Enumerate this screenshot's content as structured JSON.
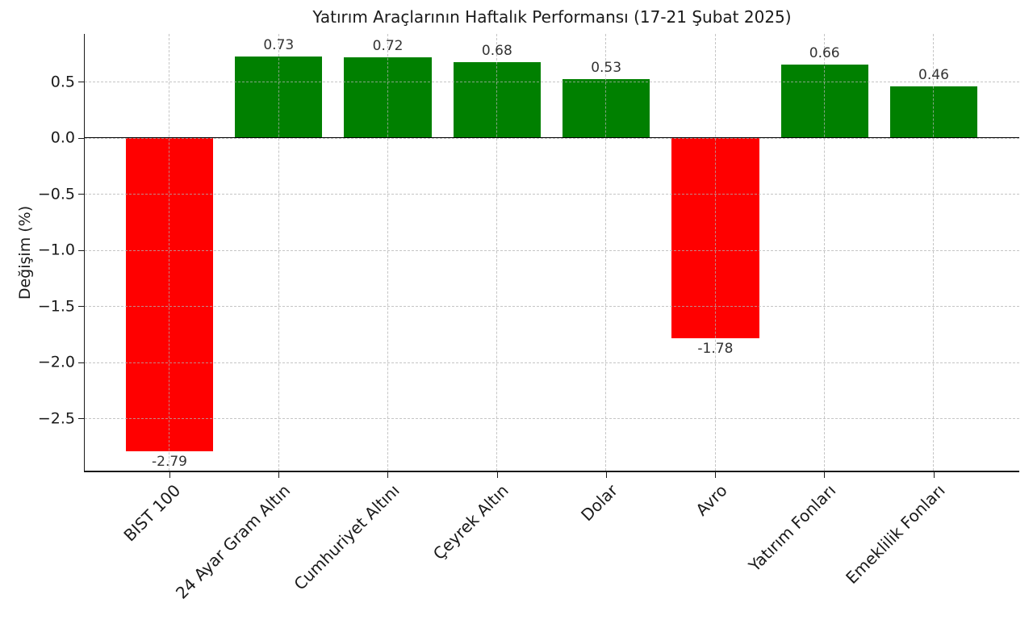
{
  "chart_data": {
    "type": "bar",
    "title": "Yatırım Araçlarının Haftalık Performansı (17-21 Şubat 2025)",
    "xlabel": "",
    "ylabel": "Değişim (%)",
    "categories": [
      "BIST 100",
      "24 Ayar Gram Altın",
      "Cumhuriyet Altını",
      "Çeyrek Altın",
      "Dolar",
      "Avro",
      "Yatırım Fonları",
      "Emeklilik Fonları"
    ],
    "values": [
      -2.79,
      0.73,
      0.72,
      0.68,
      0.53,
      -1.78,
      0.66,
      0.46
    ],
    "value_labels": [
      "-2.79",
      "0.73",
      "0.72",
      "0.68",
      "0.53",
      "-1.78",
      "0.66",
      "0.46"
    ],
    "bar_colors": [
      "#ff0000",
      "#008000",
      "#008000",
      "#008000",
      "#008000",
      "#ff0000",
      "#008000",
      "#008000"
    ],
    "positive_color": "#008000",
    "negative_color": "#ff0000",
    "yticks": [
      0.5,
      0.0,
      -0.5,
      -1.0,
      -1.5,
      -2.0,
      -2.5
    ],
    "ytick_labels": [
      "0.5",
      "0.0",
      "−0.5",
      "−1.0",
      "−1.5",
      "−2.0",
      "−2.5"
    ],
    "ylim": [
      -2.96,
      0.93
    ],
    "xlim": [
      -0.78,
      7.78
    ],
    "bar_width": 0.8,
    "grid": true,
    "grid_style": "dashed",
    "grid_color": "#b2b2b2",
    "zero_line_color": "#000000",
    "axis_color": "#1a1a1a",
    "background": "#ffffff",
    "legend": "none"
  }
}
